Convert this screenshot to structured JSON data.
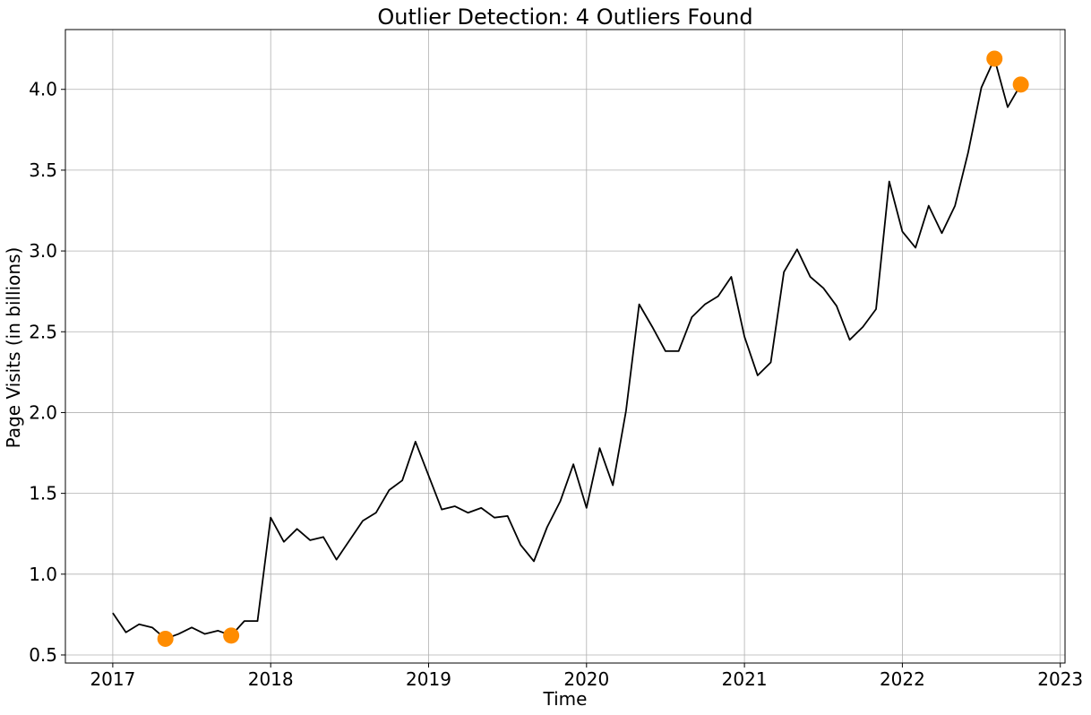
{
  "chart_data": {
    "type": "line",
    "title": "Outlier Detection: 4 Outliers Found",
    "xlabel": "Time",
    "ylabel": "Page Visits (in billions)",
    "xlim": [
      2016.7,
      2023.03
    ],
    "ylim": [
      0.45,
      4.37
    ],
    "xticks": [
      "2017",
      "2018",
      "2019",
      "2020",
      "2021",
      "2022",
      "2023"
    ],
    "yticks": [
      "0.5",
      "1.0",
      "1.5",
      "2.0",
      "2.5",
      "3.0",
      "3.5",
      "4.0"
    ],
    "grid": true,
    "series": [
      {
        "values": [
          0.76,
          0.64,
          0.69,
          0.67,
          0.6,
          0.63,
          0.67,
          0.63,
          0.65,
          0.62,
          0.71,
          0.71,
          1.35,
          1.2,
          1.28,
          1.21,
          1.23,
          1.09,
          1.21,
          1.33,
          1.38,
          1.52,
          1.58,
          1.82,
          1.61,
          1.4,
          1.42,
          1.38,
          1.41,
          1.35,
          1.36,
          1.18,
          1.08,
          1.29,
          1.45,
          1.68,
          1.41,
          1.78,
          1.55,
          2.01,
          2.67,
          2.53,
          2.38,
          2.38,
          2.59,
          2.67,
          2.72,
          2.84,
          2.47,
          2.23,
          2.31,
          2.87,
          3.01,
          2.84,
          2.77,
          2.66,
          2.45,
          2.53,
          2.64,
          3.43,
          3.12,
          3.02,
          3.28,
          3.11,
          3.28,
          3.61,
          4.01,
          4.19,
          3.89,
          4.03
        ],
        "color": "#000000",
        "start": "2017-01",
        "frequency": "monthly"
      }
    ],
    "outliers": [
      {
        "x": "2017-05",
        "y": 0.6
      },
      {
        "x": "2017-10",
        "y": 0.62
      },
      {
        "x": "2022-08",
        "y": 4.19
      },
      {
        "x": "2022-10",
        "y": 4.03
      }
    ],
    "outlier_color": "#ff8c00"
  }
}
